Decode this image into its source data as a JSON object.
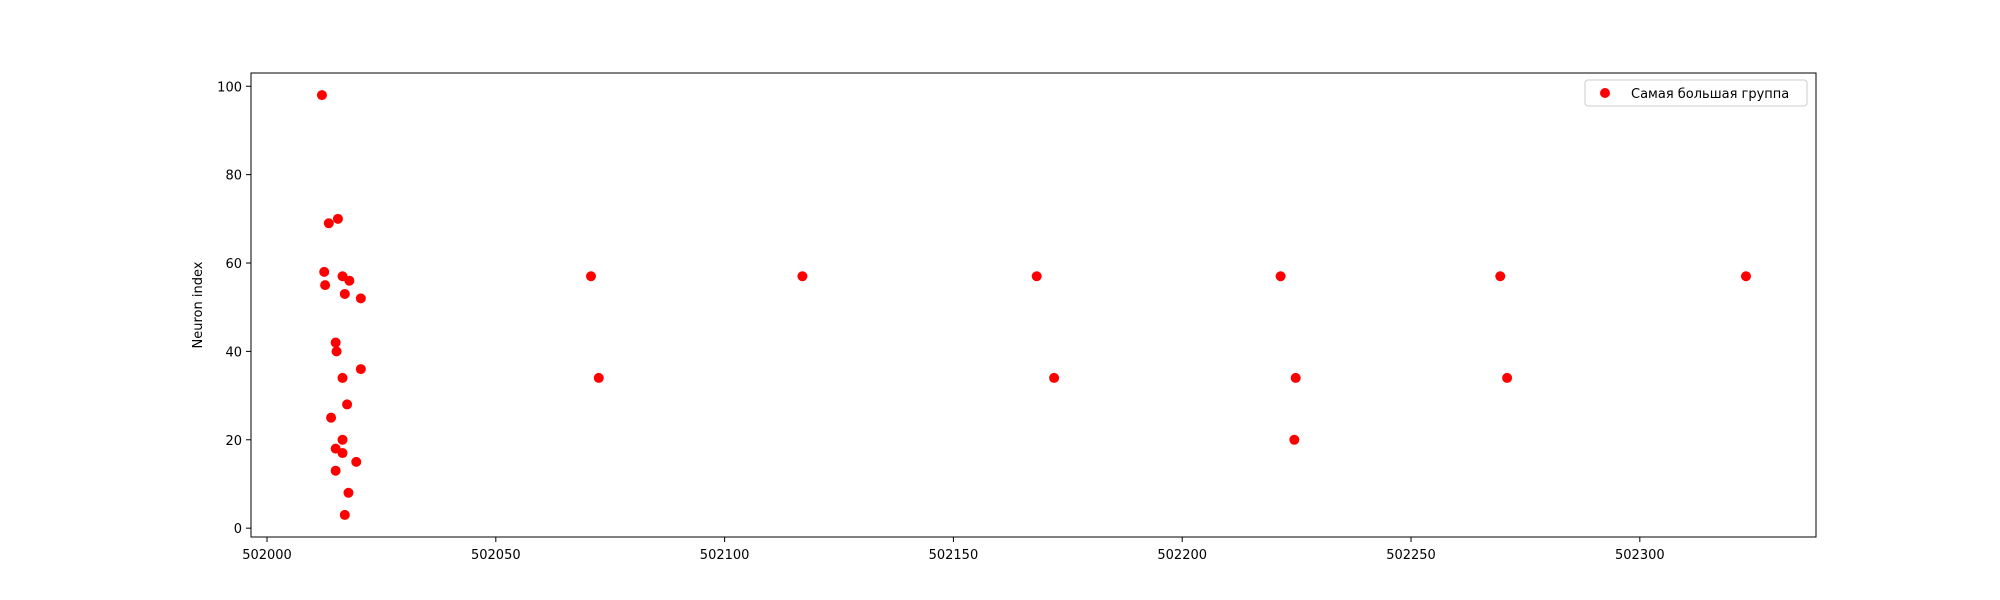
{
  "chart_data": {
    "type": "scatter",
    "title": "",
    "xlabel": "",
    "ylabel": "Neuron index",
    "xlim": [
      501996.5,
      502338.5
    ],
    "ylim": [
      -2,
      103
    ],
    "xticks": [
      502000,
      502050,
      502100,
      502150,
      502200,
      502250,
      502300
    ],
    "yticks": [
      0,
      20,
      40,
      60,
      80,
      100
    ],
    "grid": false,
    "legend": "top-right",
    "series": [
      {
        "name": "Самая большая группа",
        "color": "#ff0000",
        "points": [
          {
            "x": 502012.0,
            "y": 98
          },
          {
            "x": 502013.5,
            "y": 69
          },
          {
            "x": 502015.5,
            "y": 70
          },
          {
            "x": 502012.5,
            "y": 58
          },
          {
            "x": 502016.5,
            "y": 57
          },
          {
            "x": 502018.0,
            "y": 56
          },
          {
            "x": 502012.7,
            "y": 55
          },
          {
            "x": 502017.0,
            "y": 53
          },
          {
            "x": 502020.5,
            "y": 52
          },
          {
            "x": 502015.0,
            "y": 42
          },
          {
            "x": 502015.2,
            "y": 40
          },
          {
            "x": 502020.5,
            "y": 36
          },
          {
            "x": 502016.5,
            "y": 34
          },
          {
            "x": 502017.5,
            "y": 28
          },
          {
            "x": 502014.0,
            "y": 25
          },
          {
            "x": 502016.5,
            "y": 20
          },
          {
            "x": 502015.0,
            "y": 18
          },
          {
            "x": 502016.5,
            "y": 17
          },
          {
            "x": 502019.5,
            "y": 15
          },
          {
            "x": 502015.0,
            "y": 13
          },
          {
            "x": 502017.8,
            "y": 8
          },
          {
            "x": 502017.0,
            "y": 3
          },
          {
            "x": 502070.8,
            "y": 57
          },
          {
            "x": 502072.5,
            "y": 34
          },
          {
            "x": 502117.0,
            "y": 57
          },
          {
            "x": 502168.2,
            "y": 57
          },
          {
            "x": 502172.0,
            "y": 34
          },
          {
            "x": 502221.5,
            "y": 57
          },
          {
            "x": 502224.8,
            "y": 34
          },
          {
            "x": 502224.5,
            "y": 20
          },
          {
            "x": 502269.5,
            "y": 57
          },
          {
            "x": 502271.0,
            "y": 34
          },
          {
            "x": 502323.2,
            "y": 57
          }
        ]
      }
    ]
  }
}
